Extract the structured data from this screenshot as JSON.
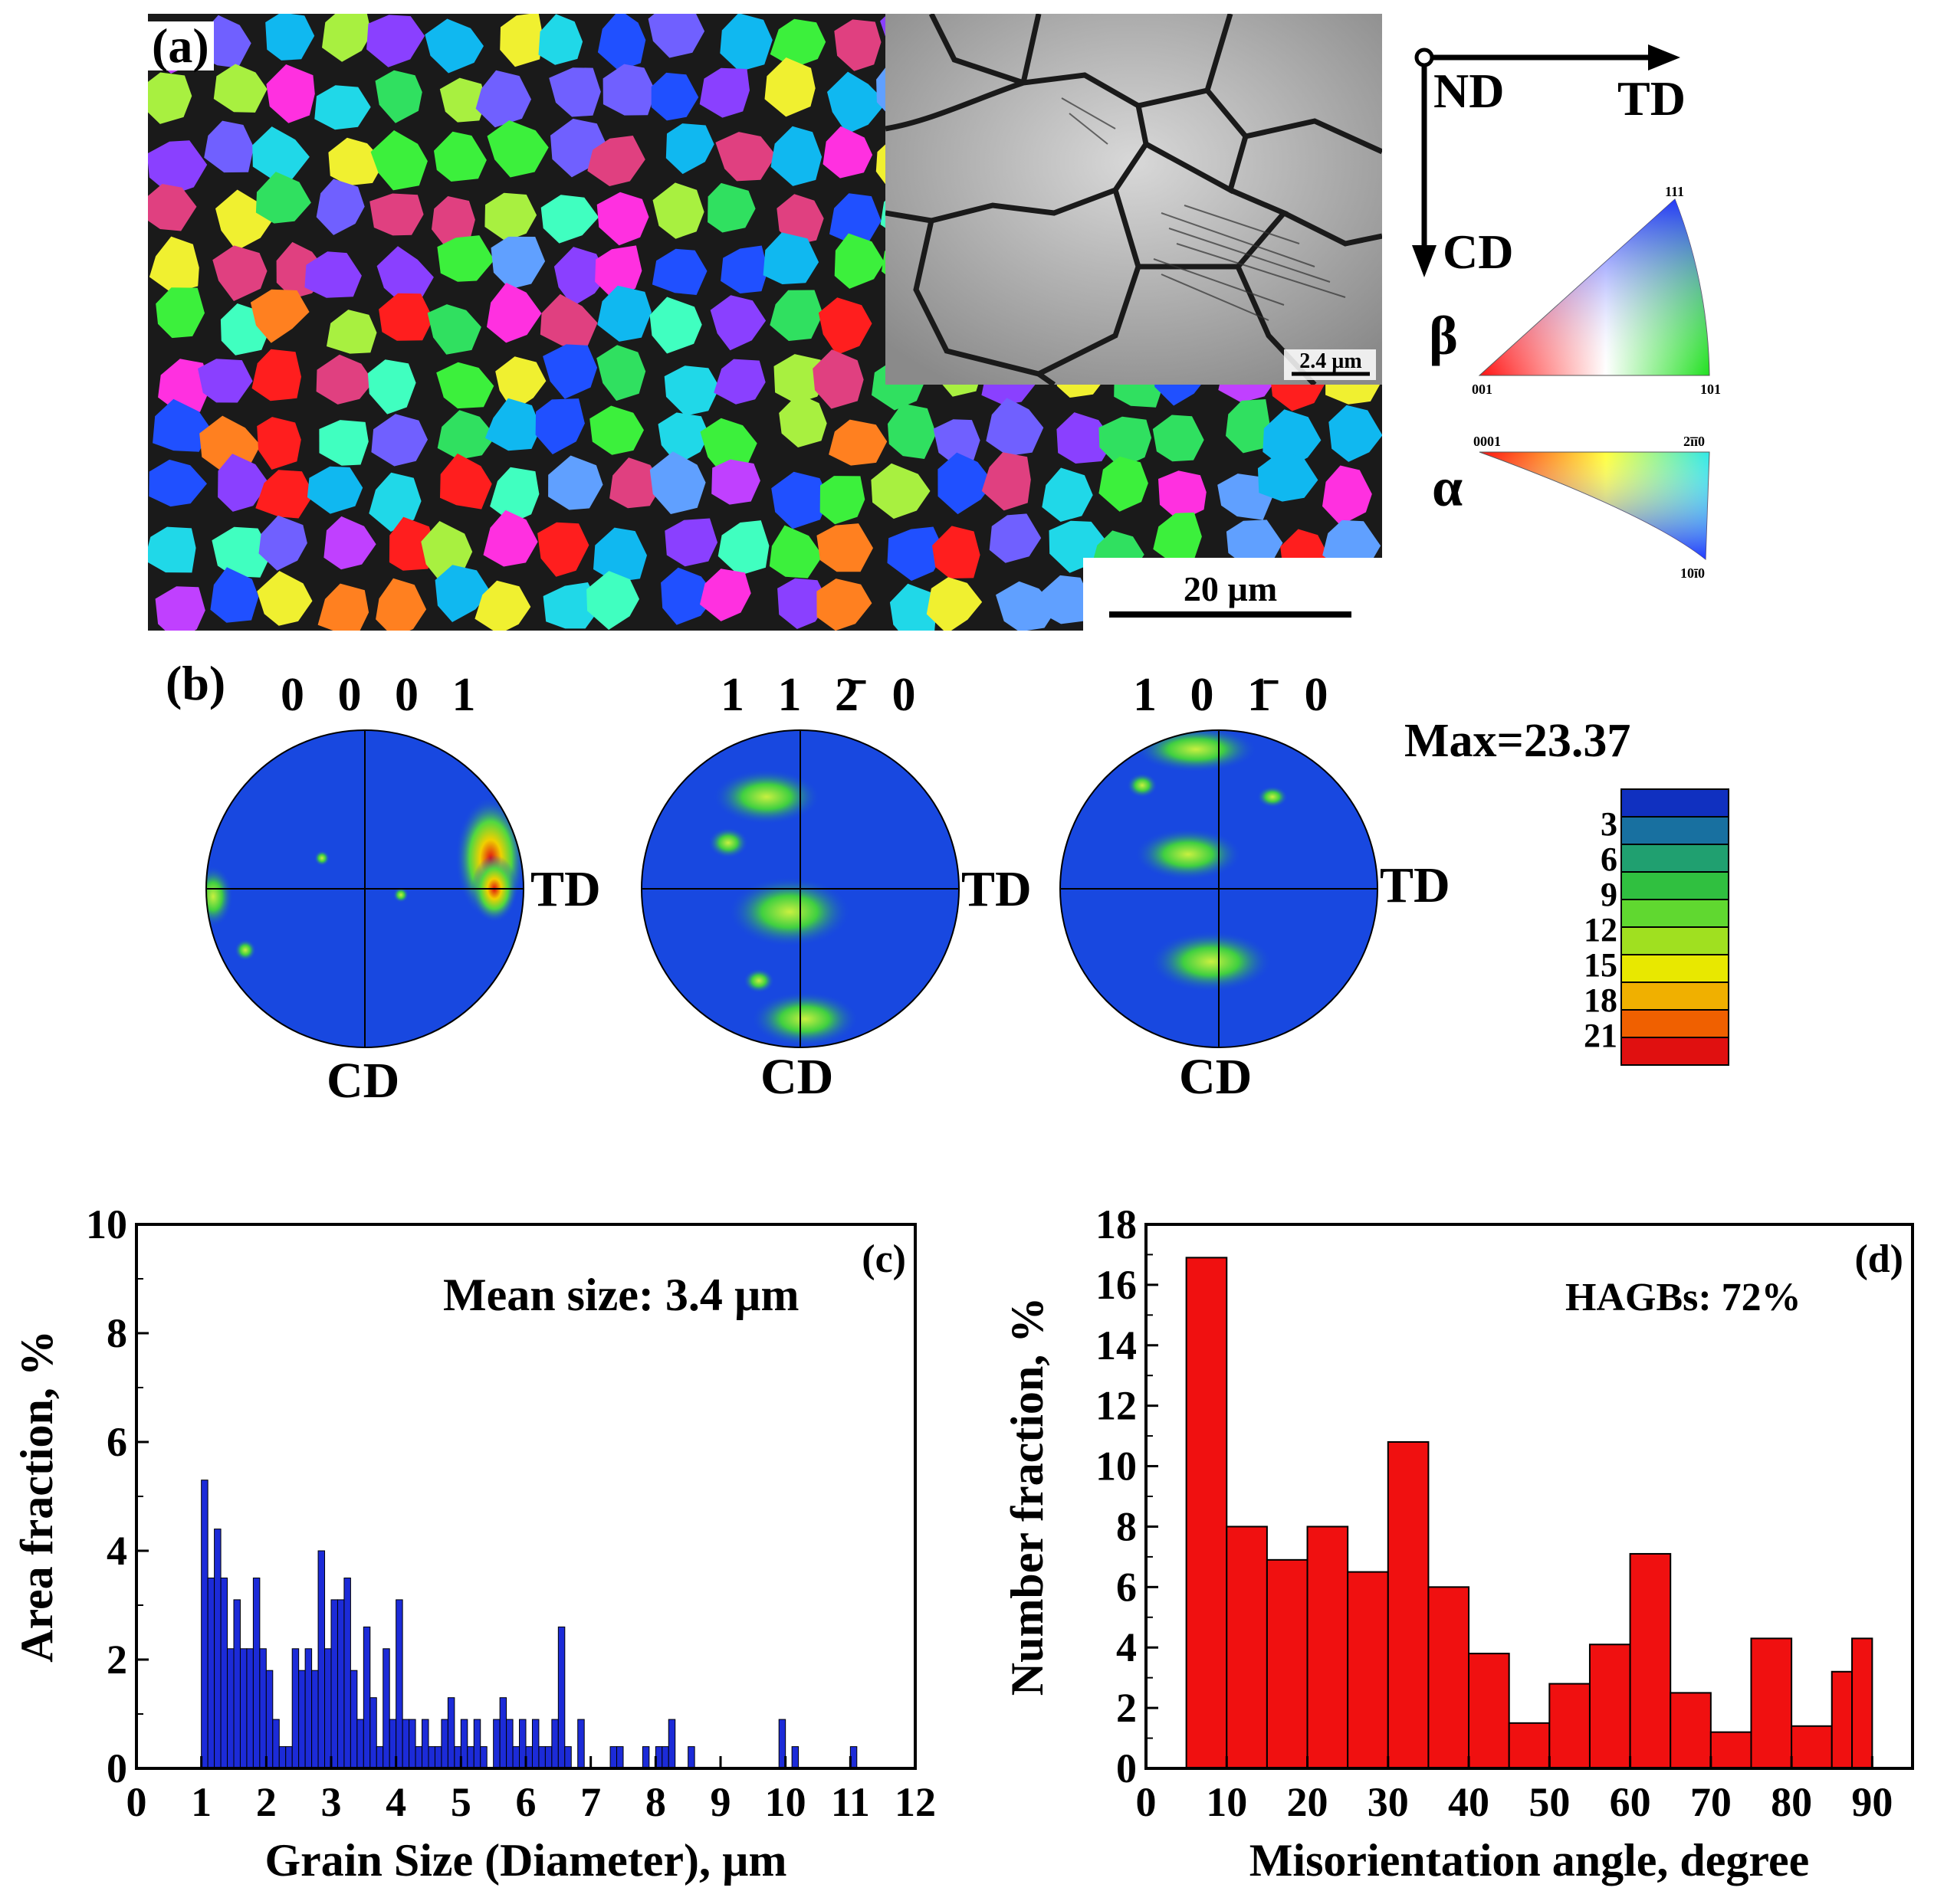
{
  "panel_a": {
    "label": "(a)",
    "inset_scalebar": "2.4 µm",
    "map_scalebar": "20 µm",
    "axes": {
      "nd": "ND",
      "td": "TD",
      "cd": "CD"
    },
    "ipf_beta": {
      "phase": "β",
      "v001": "001",
      "v101": "101",
      "v111": "111"
    },
    "ipf_alpha": {
      "phase": "α",
      "v0001": "0001",
      "v2110": "2ī̄ī0",
      "v1010": "10ī0"
    },
    "colors": {
      "red": "#ff1e1e",
      "green": "#3cf03c",
      "blue": "#2050ff"
    }
  },
  "panel_b": {
    "label": "(b)",
    "max": "Max=23.37",
    "pole_figures": [
      {
        "title": "0 0 0 1",
        "right": "TD",
        "bottom": "CD"
      },
      {
        "title": "1 1 2̄ 0",
        "right": "TD",
        "bottom": "CD"
      },
      {
        "title": "1 0 1̄ 0",
        "right": "TD",
        "bottom": "CD"
      }
    ],
    "colorbar_ticks": [
      "3",
      "6",
      "9",
      "12",
      "15",
      "18",
      "21"
    ],
    "colorbar_colors": [
      "#1030c0",
      "#1870a0",
      "#20a070",
      "#30c040",
      "#60d830",
      "#a0e020",
      "#e8e800",
      "#f0b000",
      "#f06000",
      "#e01010"
    ]
  },
  "chart_data": [
    {
      "type": "bar",
      "panel": "(c)",
      "annotation": "Mean size: 3.4 µm",
      "xlabel": "Grain Size (Diameter), µm",
      "ylabel": "Area fraction, %",
      "xlim": [
        0,
        12
      ],
      "ylim": [
        0,
        10
      ],
      "xticks": [
        "0",
        "1",
        "2",
        "3",
        "4",
        "5",
        "6",
        "7",
        "8",
        "9",
        "10",
        "11",
        "12"
      ],
      "yticks": [
        "0",
        "2",
        "4",
        "6",
        "8",
        "10"
      ],
      "bar_color": "#1c2bd8",
      "x": [
        1.05,
        1.15,
        1.25,
        1.35,
        1.45,
        1.55,
        1.65,
        1.75,
        1.85,
        1.95,
        2.05,
        2.15,
        2.25,
        2.35,
        2.45,
        2.55,
        2.65,
        2.75,
        2.85,
        2.95,
        3.05,
        3.15,
        3.25,
        3.35,
        3.45,
        3.55,
        3.65,
        3.75,
        3.85,
        3.95,
        4.05,
        4.15,
        4.25,
        4.35,
        4.45,
        4.55,
        4.65,
        4.75,
        4.85,
        4.95,
        5.05,
        5.15,
        5.25,
        5.35,
        5.55,
        5.65,
        5.75,
        5.85,
        5.95,
        6.05,
        6.15,
        6.25,
        6.35,
        6.45,
        6.55,
        6.65,
        6.85,
        7.35,
        7.45,
        7.85,
        8.05,
        8.15,
        8.25,
        8.55,
        9.95,
        10.15,
        11.05
      ],
      "values": [
        5.3,
        3.5,
        4.4,
        3.5,
        2.2,
        3.1,
        2.2,
        2.2,
        3.5,
        2.2,
        1.8,
        0.9,
        0.4,
        0.4,
        2.2,
        1.8,
        2.2,
        1.8,
        4.0,
        2.2,
        3.1,
        3.1,
        3.5,
        1.8,
        0.9,
        2.6,
        1.3,
        0.4,
        2.2,
        0.9,
        3.1,
        0.9,
        0.9,
        0.4,
        0.9,
        0.4,
        0.4,
        0.9,
        1.3,
        0.4,
        0.9,
        0.4,
        0.9,
        0.4,
        0.9,
        1.3,
        0.9,
        0.4,
        0.9,
        0.4,
        0.9,
        0.4,
        0.4,
        0.9,
        2.6,
        0.4,
        0.9,
        0.4,
        0.4,
        0.4,
        0.4,
        0.4,
        0.9,
        0.4,
        0.9,
        0.4,
        0.4
      ]
    },
    {
      "type": "bar",
      "panel": "(d)",
      "annotation": "HAGBs: 72%",
      "xlabel": "Misorientation angle, degree",
      "ylabel": "Number fraction, %",
      "xlim": [
        0,
        95
      ],
      "ylim": [
        0,
        18
      ],
      "xticks": [
        "0",
        "10",
        "20",
        "30",
        "40",
        "50",
        "60",
        "70",
        "80",
        "90"
      ],
      "yticks": [
        "0",
        "2",
        "4",
        "6",
        "8",
        "10",
        "12",
        "14",
        "16",
        "18"
      ],
      "bar_color": "#f01010",
      "x": [
        7.5,
        12.5,
        17.5,
        22.5,
        27.5,
        32.5,
        37.5,
        42.5,
        47.5,
        52.5,
        57.5,
        62.5,
        67.5,
        72.5,
        77.5,
        82.5,
        86.25,
        88.75
      ],
      "widths": [
        5,
        5,
        5,
        5,
        5,
        5,
        5,
        5,
        5,
        5,
        5,
        5,
        5,
        5,
        5,
        5,
        2.5,
        2.5
      ],
      "values": [
        16.9,
        8.0,
        6.9,
        8.0,
        6.5,
        10.8,
        6.0,
        3.8,
        1.5,
        2.8,
        4.1,
        7.1,
        2.5,
        1.2,
        4.3,
        1.4,
        3.2,
        4.3
      ]
    }
  ]
}
